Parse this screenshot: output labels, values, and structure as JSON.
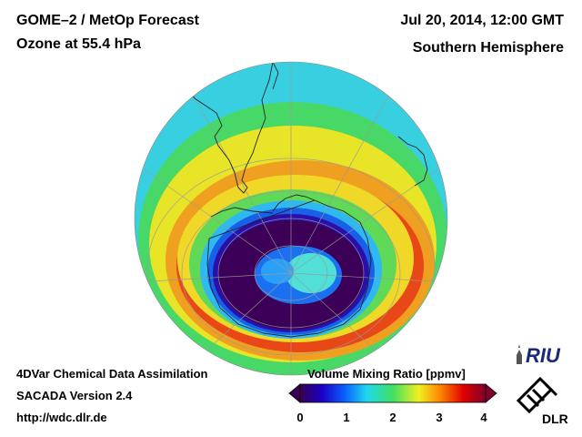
{
  "header": {
    "title_line1": "GOME–2 / MetOp Forecast",
    "title_line2": "Ozone at 55.4 hPa",
    "date": "Jul 20, 2014, 12:00 GMT",
    "region": "Southern Hemisphere"
  },
  "footer": {
    "line1": "4DVar Chemical Data Assimilation",
    "line2": "SACADA Version 2.4",
    "line3": "http://wdc.dlr.de"
  },
  "colorbar": {
    "title": "Volume Mixing Ratio [ppmv]",
    "ticks": [
      "0",
      "1",
      "2",
      "3",
      "4"
    ],
    "min": 0,
    "max": 4,
    "colors": [
      "#3a0050",
      "#1a00c8",
      "#0a60ff",
      "#20d8f0",
      "#40e060",
      "#f0f020",
      "#ff8000",
      "#e00000",
      "#80002a"
    ]
  },
  "logos": {
    "riu": "RIU",
    "dlr": "DLR"
  },
  "map": {
    "projection": "orthographic",
    "hemisphere": "south",
    "features": [
      "ozone-hole",
      "south-america",
      "antarctica",
      "graticule"
    ]
  }
}
